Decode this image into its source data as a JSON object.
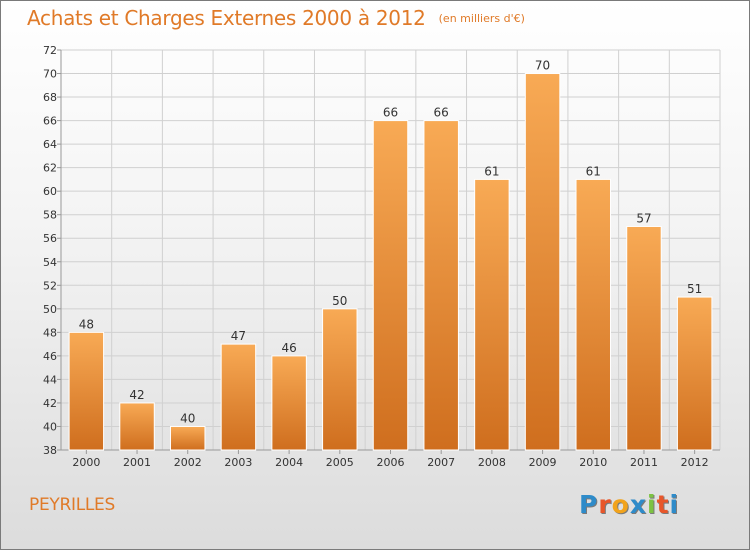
{
  "header": {
    "title": "Achats et Charges Externes 2000 à 2012",
    "subtitle": "(en milliers d'€)"
  },
  "footer": {
    "commune": "PEYRILLES"
  },
  "logo": {
    "letters": [
      "P",
      "r",
      "o",
      "x",
      "i",
      "t",
      "i"
    ],
    "colors": [
      "#2e8bc9",
      "#e8562a",
      "#f2a31b",
      "#2e8bc9",
      "#7cc242",
      "#e8562a",
      "#2e8bc9"
    ]
  },
  "colors": {
    "bar_top": "#f8aa55",
    "bar_bottom": "#cf6e1e",
    "grid": "#d0d0d0",
    "text": "#333333",
    "accent": "#e07a28"
  },
  "chart_data": {
    "type": "bar",
    "title": "Achats et Charges Externes 2000 à 2012",
    "subtitle": "(en milliers d'€)",
    "categories": [
      "2000",
      "2001",
      "2002",
      "2003",
      "2004",
      "2005",
      "2006",
      "2007",
      "2008",
      "2009",
      "2010",
      "2011",
      "2012"
    ],
    "values": [
      48,
      42,
      40,
      47,
      46,
      50,
      66,
      66,
      61,
      70,
      61,
      57,
      51
    ],
    "ylim": [
      38,
      72
    ],
    "yticks": [
      38,
      40,
      42,
      44,
      46,
      48,
      50,
      52,
      54,
      56,
      58,
      60,
      62,
      64,
      66,
      68,
      70,
      72
    ],
    "xlabel": "",
    "ylabel": "",
    "grid": true,
    "data_labels": true
  }
}
